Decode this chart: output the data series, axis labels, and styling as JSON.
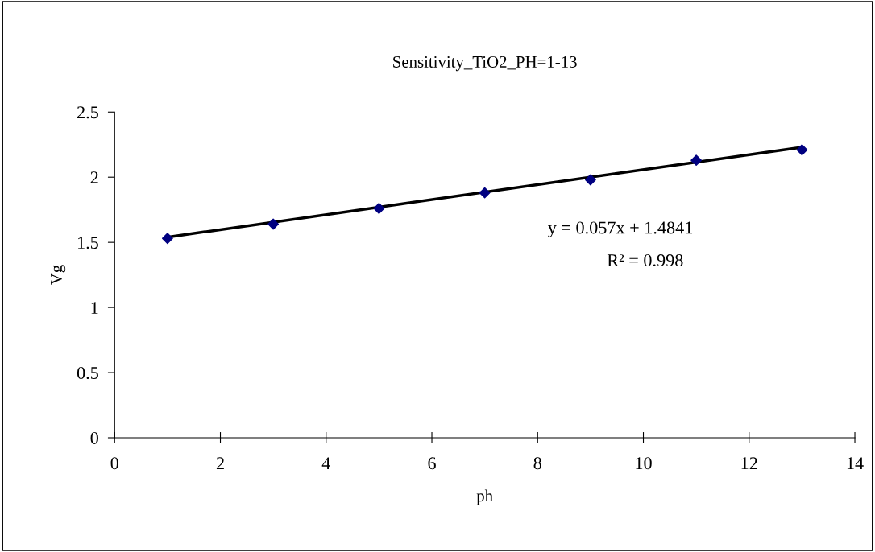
{
  "chart_data": {
    "type": "scatter",
    "title": "Sensitivity_TiO2_PH=1-13",
    "xlabel": "ph",
    "ylabel": "Vg",
    "x": [
      1,
      3,
      5,
      7,
      9,
      11,
      13
    ],
    "series": [
      {
        "color": "#000080",
        "marker": "diamond",
        "values": [
          1.53,
          1.64,
          1.76,
          1.88,
          1.98,
          2.13,
          2.21
        ]
      },
      {
        "type": "line",
        "color": "#000000",
        "marker": "none",
        "line_style": "solid",
        "x": [
          1,
          13
        ],
        "values": [
          1.54,
          2.23
        ]
      }
    ],
    "annotations": [
      "y = 0.057x + 1.4841",
      "R² = 0.998"
    ],
    "xlim": [
      0,
      14
    ],
    "xticks": [
      0,
      2,
      4,
      6,
      8,
      10,
      12,
      14
    ],
    "ylim": [
      0,
      2.5
    ],
    "yticks": [
      0,
      0.5,
      1,
      1.5,
      2,
      2.5
    ],
    "grid": false,
    "legend": false
  }
}
